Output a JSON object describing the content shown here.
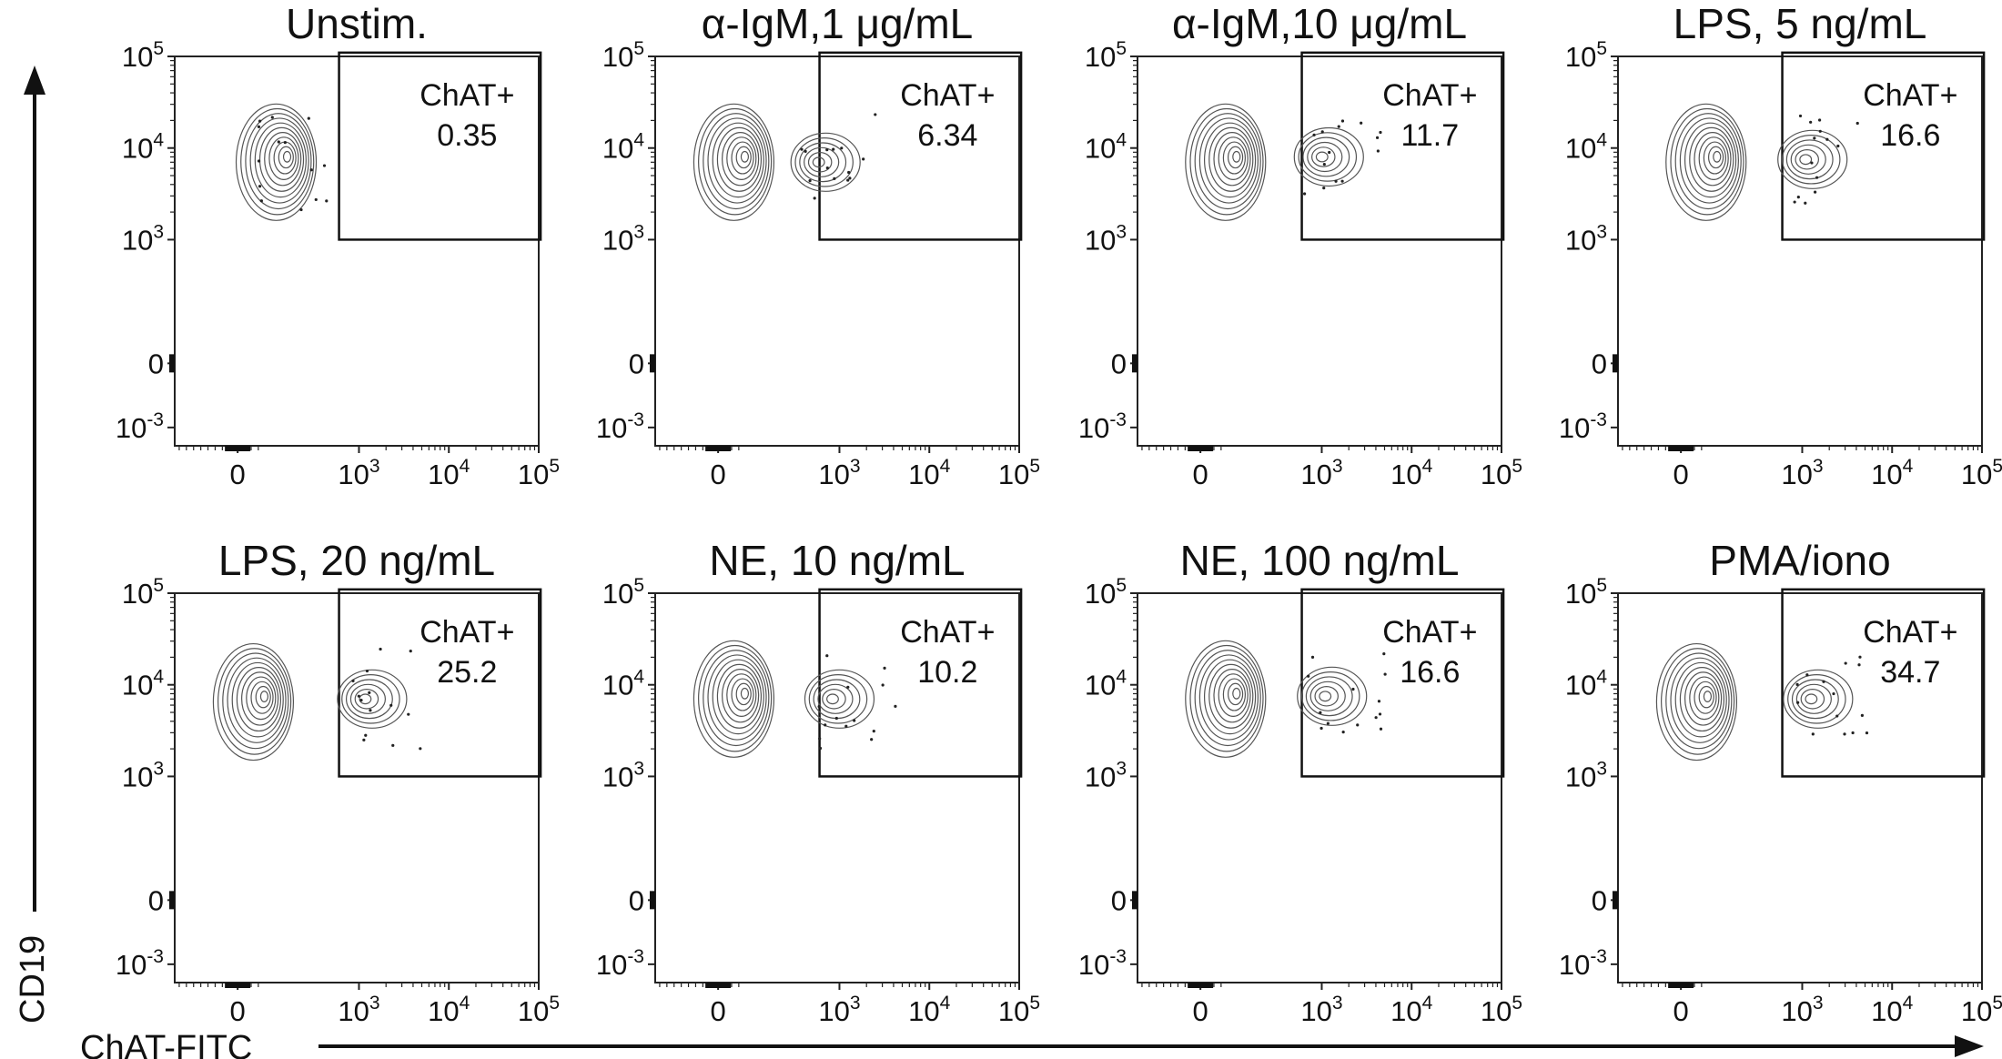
{
  "figure": {
    "y_axis_title": "CD19",
    "x_axis_title": "ChAT-FITC"
  },
  "chart_data": [
    {
      "type": "contour",
      "title": "Unstim.",
      "gate": {
        "label": "ChAT+",
        "value": "0.35"
      },
      "x_scale": "biexponential",
      "y_scale": "biexponential",
      "x_ticks": [
        "0",
        "10^3",
        "10^4",
        "10^5"
      ],
      "y_ticks": [
        "10^5",
        "10^4",
        "10^3",
        "0",
        "10^-3"
      ],
      "populations": [
        {
          "x": 120,
          "y": 7000,
          "role": "main"
        }
      ]
    },
    {
      "type": "contour",
      "title": "α-IgM,1 μg/mL",
      "gate": {
        "label": "ChAT+",
        "value": "6.34"
      },
      "x_scale": "biexponential",
      "y_scale": "biexponential",
      "x_ticks": [
        "0",
        "10^3",
        "10^4",
        "10^5"
      ],
      "y_ticks": [
        "10^5",
        "10^4",
        "10^3",
        "0",
        "10^-3"
      ],
      "populations": [
        {
          "x": 50,
          "y": 7000,
          "role": "main"
        },
        {
          "x": 700,
          "y": 7000,
          "role": "shoulder"
        }
      ]
    },
    {
      "type": "contour",
      "title": "α-IgM,10 μg/mL",
      "gate": {
        "label": "ChAT+",
        "value": "11.7"
      },
      "x_scale": "biexponential",
      "y_scale": "biexponential",
      "x_ticks": [
        "0",
        "10^3",
        "10^4",
        "10^5"
      ],
      "y_ticks": [
        "10^5",
        "10^4",
        "10^3",
        "0",
        "10^-3"
      ],
      "populations": [
        {
          "x": 80,
          "y": 7000,
          "role": "main"
        },
        {
          "x": 1200,
          "y": 8000,
          "role": "ChAT+"
        }
      ]
    },
    {
      "type": "contour",
      "title": "LPS, 5 ng/mL",
      "gate": {
        "label": "ChAT+",
        "value": "16.6"
      },
      "x_scale": "biexponential",
      "y_scale": "biexponential",
      "x_ticks": [
        "0",
        "10^3",
        "10^4",
        "10^5"
      ],
      "y_ticks": [
        "10^5",
        "10^4",
        "10^3",
        "0",
        "10^-3"
      ],
      "populations": [
        {
          "x": 80,
          "y": 7000,
          "role": "main"
        },
        {
          "x": 1300,
          "y": 7500,
          "role": "ChAT+"
        }
      ]
    },
    {
      "type": "contour",
      "title": "LPS, 20 ng/mL",
      "gate": {
        "label": "ChAT+",
        "value": "25.2"
      },
      "x_scale": "biexponential",
      "y_scale": "biexponential",
      "x_ticks": [
        "0",
        "10^3",
        "10^4",
        "10^5"
      ],
      "y_ticks": [
        "10^5",
        "10^4",
        "10^3",
        "0",
        "10^-3"
      ],
      "populations": [
        {
          "x": 50,
          "y": 6500,
          "role": "main"
        },
        {
          "x": 1400,
          "y": 7000,
          "role": "ChAT+"
        }
      ]
    },
    {
      "type": "contour",
      "title": "NE, 10 ng/mL",
      "gate": {
        "label": "ChAT+",
        "value": "10.2"
      },
      "x_scale": "biexponential",
      "y_scale": "biexponential",
      "x_ticks": [
        "0",
        "10^3",
        "10^4",
        "10^5"
      ],
      "y_ticks": [
        "10^5",
        "10^4",
        "10^3",
        "0",
        "10^-3"
      ],
      "populations": [
        {
          "x": 50,
          "y": 7000,
          "role": "main"
        },
        {
          "x": 1000,
          "y": 7000,
          "role": "ChAT+"
        }
      ]
    },
    {
      "type": "contour",
      "title": "NE, 100 ng/mL",
      "gate": {
        "label": "ChAT+",
        "value": "16.6"
      },
      "x_scale": "biexponential",
      "y_scale": "biexponential",
      "x_ticks": [
        "0",
        "10^3",
        "10^4",
        "10^5"
      ],
      "y_ticks": [
        "10^5",
        "10^4",
        "10^3",
        "0",
        "10^-3"
      ],
      "populations": [
        {
          "x": 80,
          "y": 7000,
          "role": "main"
        },
        {
          "x": 1300,
          "y": 7500,
          "role": "ChAT+"
        }
      ]
    },
    {
      "type": "contour",
      "title": "PMA/iono",
      "gate": {
        "label": "ChAT+",
        "value": "34.7"
      },
      "x_scale": "biexponential",
      "y_scale": "biexponential",
      "x_ticks": [
        "0",
        "10^3",
        "10^4",
        "10^5"
      ],
      "y_ticks": [
        "10^5",
        "10^4",
        "10^3",
        "0",
        "10^-3"
      ],
      "populations": [
        {
          "x": 50,
          "y": 6500,
          "role": "main"
        },
        {
          "x": 1500,
          "y": 7000,
          "role": "ChAT+"
        }
      ]
    }
  ]
}
